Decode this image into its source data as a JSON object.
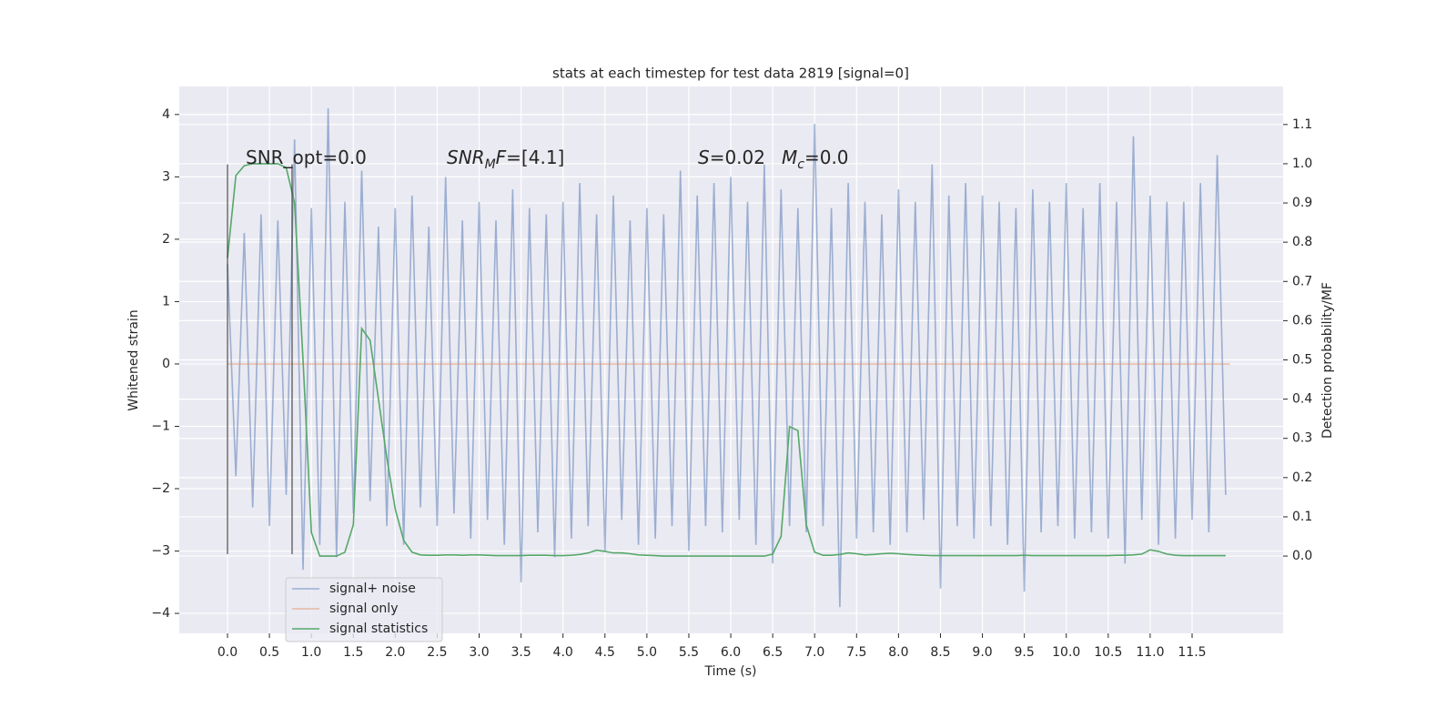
{
  "chart_data": {
    "type": "line",
    "title": "stats at each timestep for test data 2819 [signal=0]",
    "xlabel": "Time (s)",
    "ylabel": "Whitened strain",
    "y2label": "Detection probability/MF",
    "x": [
      0,
      0.1,
      0.2,
      0.3,
      0.4,
      0.5,
      0.6,
      0.7,
      0.8,
      0.9,
      1,
      1.1,
      1.2,
      1.3,
      1.4,
      1.5,
      1.6,
      1.7,
      1.8,
      1.9,
      2,
      2.1,
      2.2,
      2.3,
      2.4,
      2.5,
      2.6,
      2.7,
      2.8,
      2.9,
      3,
      3.1,
      3.2,
      3.3,
      3.4,
      3.5,
      3.6,
      3.7,
      3.8,
      3.9,
      4,
      4.1,
      4.2,
      4.3,
      4.4,
      4.5,
      4.6,
      4.7,
      4.8,
      4.9,
      5,
      5.1,
      5.2,
      5.3,
      5.4,
      5.5,
      5.6,
      5.7,
      5.8,
      5.9,
      6,
      6.1,
      6.2,
      6.3,
      6.4,
      6.5,
      6.6,
      6.7,
      6.8,
      6.9,
      7,
      7.1,
      7.2,
      7.3,
      7.4,
      7.5,
      7.6,
      7.7,
      7.8,
      7.9,
      8,
      8.1,
      8.2,
      8.3,
      8.4,
      8.5,
      8.6,
      8.7,
      8.8,
      8.9,
      9,
      9.1,
      9.2,
      9.3,
      9.4,
      9.5,
      9.6,
      9.7,
      9.8,
      9.9,
      10,
      10.1,
      10.2,
      10.3,
      10.4,
      10.5,
      10.6,
      10.7,
      10.8,
      10.9,
      11,
      11.1,
      11.2,
      11.3,
      11.4,
      11.5,
      11.6,
      11.7,
      11.8,
      11.9
    ],
    "series": [
      {
        "name": "signal+ noise",
        "color": "#4c72b0",
        "opacity": 0.5,
        "values": [
          1.6,
          -1.8,
          2.1,
          -2.3,
          2.4,
          -2.6,
          2.3,
          -2.1,
          3.6,
          -3.3,
          2.5,
          -2.9,
          4.1,
          -3.1,
          2.6,
          -2.4,
          3.1,
          -2.2,
          2.2,
          -2.6,
          2.5,
          -2.9,
          2.7,
          -2.3,
          2.2,
          -2.6,
          3.0,
          -2.4,
          2.3,
          -2.8,
          2.6,
          -2.5,
          2.3,
          -2.9,
          2.8,
          -3.5,
          2.5,
          -2.7,
          2.4,
          -3.1,
          2.6,
          -2.8,
          2.9,
          -2.6,
          2.4,
          -3.0,
          2.7,
          -2.5,
          2.3,
          -2.9,
          2.5,
          -2.8,
          2.4,
          -2.6,
          3.1,
          -3.0,
          2.7,
          -2.6,
          2.9,
          -2.7,
          3.0,
          -2.5,
          2.6,
          -2.9,
          3.2,
          -3.2,
          2.8,
          -2.6,
          2.5,
          -2.7,
          3.85,
          -2.6,
          2.5,
          -3.9,
          2.9,
          -2.8,
          2.6,
          -2.7,
          2.4,
          -2.9,
          2.8,
          -2.7,
          2.6,
          -2.5,
          3.2,
          -3.6,
          2.7,
          -2.6,
          2.9,
          -2.8,
          2.7,
          -2.6,
          2.6,
          -2.9,
          2.5,
          -3.65,
          2.8,
          -2.7,
          2.6,
          -2.6,
          2.9,
          -2.8,
          2.5,
          -2.7,
          2.9,
          -2.8,
          2.6,
          -3.2,
          3.65,
          -2.5,
          2.7,
          -2.9,
          2.6,
          -2.8,
          2.6,
          -2.5,
          2.9,
          -2.7,
          3.35,
          -2.1
        ]
      },
      {
        "name": "signal only",
        "color": "#dd8452",
        "opacity": 0.5,
        "x": [
          0,
          11.95
        ],
        "values": [
          0,
          0
        ]
      },
      {
        "name": "signal statistics",
        "color": "#55a868",
        "opacity": 1,
        "axis": "y2",
        "values": [
          0.76,
          0.97,
          0.995,
          1.0,
          1.0,
          1.0,
          1.0,
          0.99,
          0.9,
          0.5,
          0.06,
          0.0,
          0.0,
          0.0,
          0.01,
          0.08,
          0.58,
          0.55,
          0.4,
          0.25,
          0.12,
          0.04,
          0.01,
          0.003,
          0.002,
          0.002,
          0.003,
          0.003,
          0.002,
          0.003,
          0.003,
          0.002,
          0.001,
          0.001,
          0.001,
          0.001,
          0.002,
          0.002,
          0.002,
          0.001,
          0.001,
          0.002,
          0.004,
          0.008,
          0.015,
          0.012,
          0.008,
          0.008,
          0.006,
          0.003,
          0.002,
          0.001,
          0.0,
          0.0,
          0.0,
          0.0,
          0.0,
          0.0,
          0.0,
          0.0,
          0.0,
          0.0,
          0.0,
          0.0,
          0.0,
          0.005,
          0.05,
          0.33,
          0.32,
          0.08,
          0.01,
          0.002,
          0.002,
          0.004,
          0.008,
          0.006,
          0.003,
          0.004,
          0.006,
          0.007,
          0.006,
          0.004,
          0.003,
          0.002,
          0.001,
          0.001,
          0.001,
          0.001,
          0.001,
          0.001,
          0.001,
          0.001,
          0.001,
          0.001,
          0.001,
          0.002,
          0.001,
          0.001,
          0.001,
          0.001,
          0.001,
          0.001,
          0.001,
          0.001,
          0.001,
          0.001,
          0.002,
          0.002,
          0.003,
          0.005,
          0.016,
          0.012,
          0.005,
          0.002,
          0.001,
          0.001,
          0.001,
          0.001,
          0.001,
          0.001
        ]
      }
    ],
    "vlines": [
      {
        "x": 0,
        "ymin": -3.05,
        "ymax": 3.2,
        "color": "#333333"
      },
      {
        "x": 0.77,
        "ymin": -3.05,
        "ymax": 3.2,
        "color": "#333333"
      }
    ],
    "annotations": [
      [
        {
          "text": "SNR_opt=0.0"
        }
      ],
      [
        {
          "text": "SNR",
          "italic": true
        },
        {
          "text": "M",
          "italic": true,
          "sub": true
        },
        {
          "text": "F",
          "italic": true
        },
        {
          "text": "=[4.1]"
        }
      ],
      [
        {
          "text": "S",
          "italic": true
        },
        {
          "text": "=0.02"
        }
      ],
      [
        {
          "text": "M",
          "italic": true
        },
        {
          "text": "c",
          "italic": true,
          "sub": true
        },
        {
          "text": "=0.0"
        }
      ]
    ],
    "xlim": [
      -0.575,
      12.585
    ],
    "ylim": [
      -4.32,
      4.45
    ],
    "y2lim": [
      -0.197,
      1.197
    ],
    "xticks": [
      {
        "value": 0,
        "label": "0.0"
      },
      0.5,
      {
        "value": 1,
        "label": "1.0"
      },
      1.5,
      {
        "value": 2,
        "label": "2.0"
      },
      2.5,
      {
        "value": 3,
        "label": "3.0"
      },
      3.5,
      {
        "value": 4,
        "label": "4.0"
      },
      4.5,
      {
        "value": 5,
        "label": "5.0"
      },
      5.5,
      {
        "value": 6,
        "label": "6.0"
      },
      6.5,
      {
        "value": 7,
        "label": "7.0"
      },
      7.5,
      {
        "value": 8,
        "label": "8.0"
      },
      8.5,
      {
        "value": 9,
        "label": "9.0"
      },
      9.5,
      {
        "value": 10,
        "label": "10.0"
      },
      10.5,
      {
        "value": 11,
        "label": "11.0"
      },
      11.5
    ],
    "yticks": [
      {
        "value": -4,
        "label": "−4"
      },
      {
        "value": -3,
        "label": "−3"
      },
      {
        "value": -2,
        "label": "−2"
      },
      {
        "value": -1,
        "label": "−1"
      },
      0,
      1,
      2,
      3,
      4
    ],
    "y2ticks": [
      {
        "value": 0,
        "label": "0.0"
      },
      0.1,
      0.2,
      0.3,
      0.4,
      0.5,
      0.6,
      0.7,
      0.8,
      0.9,
      {
        "value": 1,
        "label": "1.0"
      },
      1.1
    ],
    "grid": true,
    "legend": "lower left",
    "background": "#eaeaf2"
  }
}
